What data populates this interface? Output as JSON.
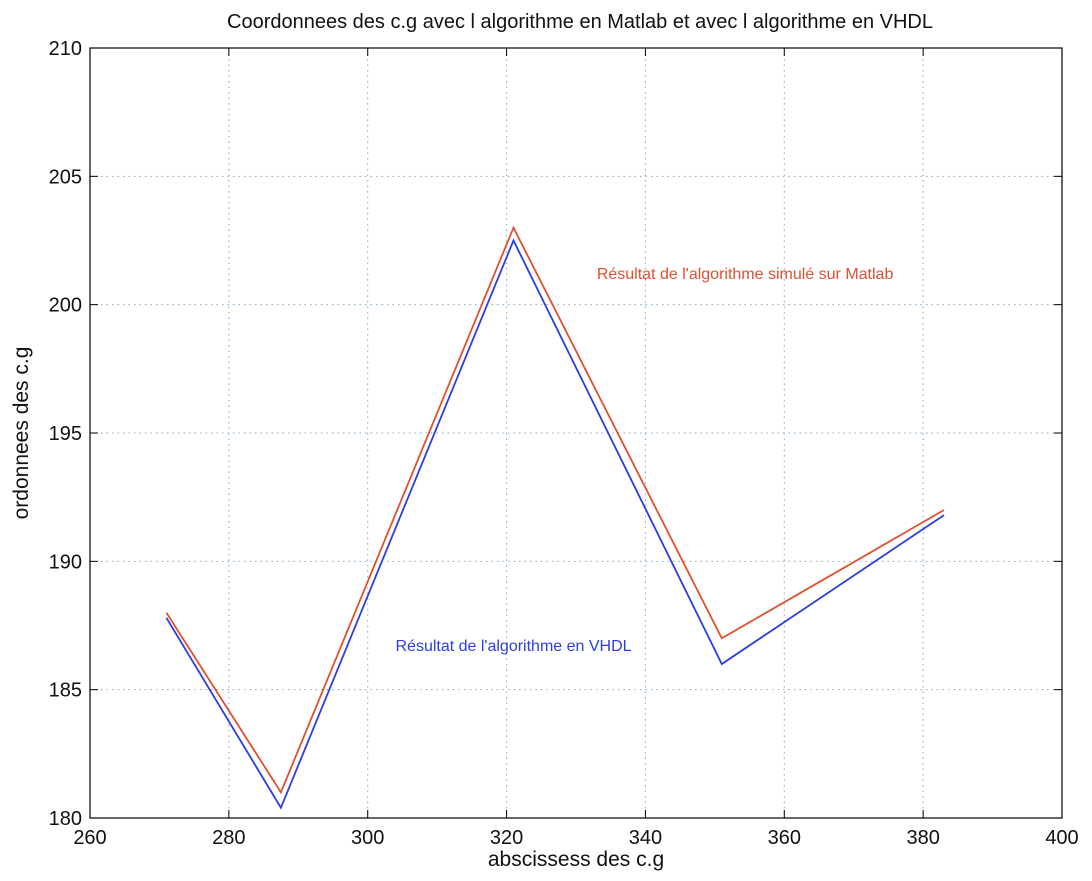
{
  "chart_data": {
    "type": "line",
    "title": "Coordonnees des c.g avec l algorithme en Matlab et avec l algorithme en VHDL",
    "xlabel": "abscissess des c.g",
    "ylabel": "ordonnees des c.g",
    "xlim": [
      260,
      400
    ],
    "ylim": [
      180,
      210
    ],
    "xticks": [
      260,
      280,
      300,
      320,
      340,
      360,
      380,
      400
    ],
    "yticks": [
      180,
      185,
      190,
      195,
      200,
      205,
      210
    ],
    "grid": true,
    "series": [
      {
        "color": "#2b3ee0",
        "x": [
          271,
          287.5,
          321,
          351,
          383
        ],
        "y": [
          187.8,
          180.4,
          202.5,
          186,
          191.8
        ]
      },
      {
        "color": "#e05030",
        "x": [
          271,
          287.5,
          321,
          351,
          383
        ],
        "y": [
          188,
          181,
          203,
          187,
          192
        ]
      }
    ],
    "annotations": [
      {
        "text": "Résultat de l'algorithme simulé sur Matlab",
        "x": 333,
        "y": 201,
        "color": "#e05030"
      },
      {
        "text": "Résultat de l'algorithme en VHDL",
        "x": 304,
        "y": 186.5,
        "color": "#2b3ee0"
      }
    ]
  }
}
